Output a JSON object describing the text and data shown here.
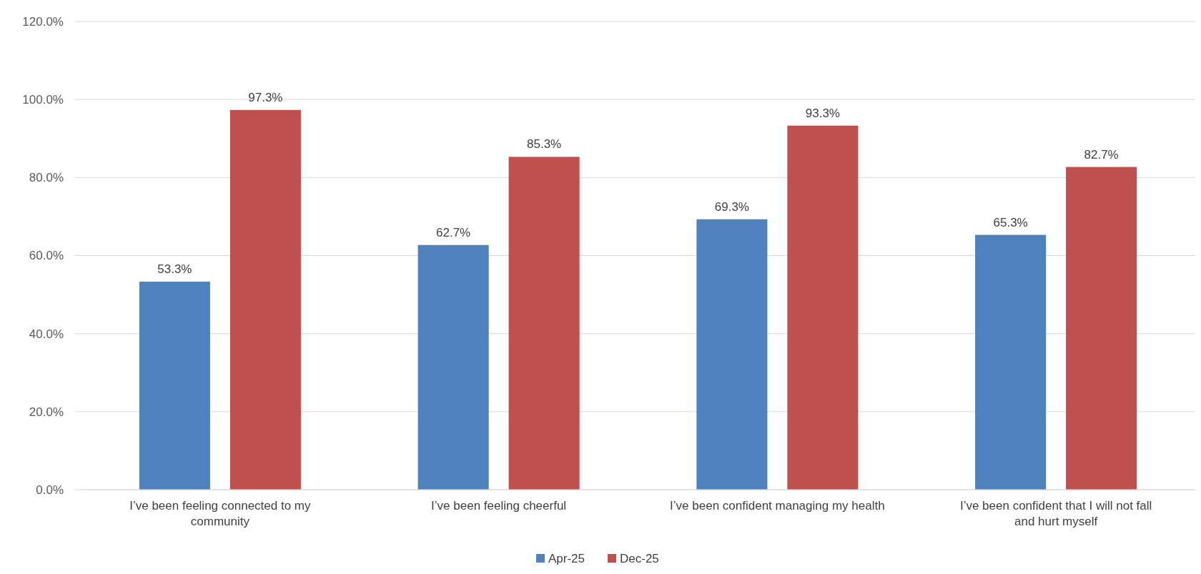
{
  "chart_data": {
    "type": "bar",
    "categories": [
      "I’ve been feeling connected to my community",
      "I’ve been feeling cheerful",
      "I’ve been confident managing my health",
      "I’ve been confident that I will not fall and hurt myself"
    ],
    "series": [
      {
        "name": "Apr-25",
        "color": "#4f81bd",
        "values": [
          53.3,
          62.7,
          69.3,
          65.3
        ],
        "value_labels": [
          "53.3%",
          "62.7%",
          "69.3%",
          "65.3%"
        ]
      },
      {
        "name": "Dec-25",
        "color": "#c0504d",
        "values": [
          97.3,
          85.3,
          93.3,
          82.7
        ],
        "value_labels": [
          "97.3%",
          "85.3%",
          "93.3%",
          "82.7%"
        ]
      }
    ],
    "ylim": [
      0,
      120
    ],
    "yticks": [
      {
        "value": 0,
        "label": "0.0%"
      },
      {
        "value": 20,
        "label": "20.0%"
      },
      {
        "value": 40,
        "label": "40.0%"
      },
      {
        "value": 60,
        "label": "60.0%"
      },
      {
        "value": 80,
        "label": "80.0%"
      },
      {
        "value": 100,
        "label": "100.0%"
      },
      {
        "value": 120,
        "label": "120.0%"
      }
    ],
    "grid": "y",
    "legend": "bottom"
  }
}
